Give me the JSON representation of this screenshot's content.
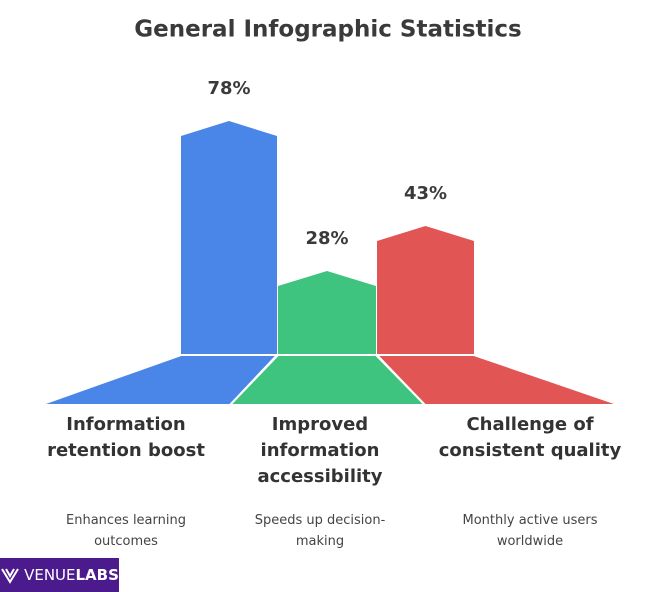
{
  "chart_data": {
    "type": "bar",
    "title": "General Infographic Statistics",
    "categories": [
      "Information retention boost",
      "Improved information accessibility",
      "Challenge of consistent quality"
    ],
    "descriptions": [
      "Enhances learning outcomes",
      "Speeds up decision-making",
      "Monthly active users worldwide"
    ],
    "values": [
      78,
      28,
      43
    ],
    "value_labels": [
      "78%",
      "28%",
      "43%"
    ],
    "colors": [
      "#4a86e8",
      "#3ec47f",
      "#e15554"
    ]
  },
  "logo": {
    "part1": "VENUE",
    "part2": "LABS"
  }
}
